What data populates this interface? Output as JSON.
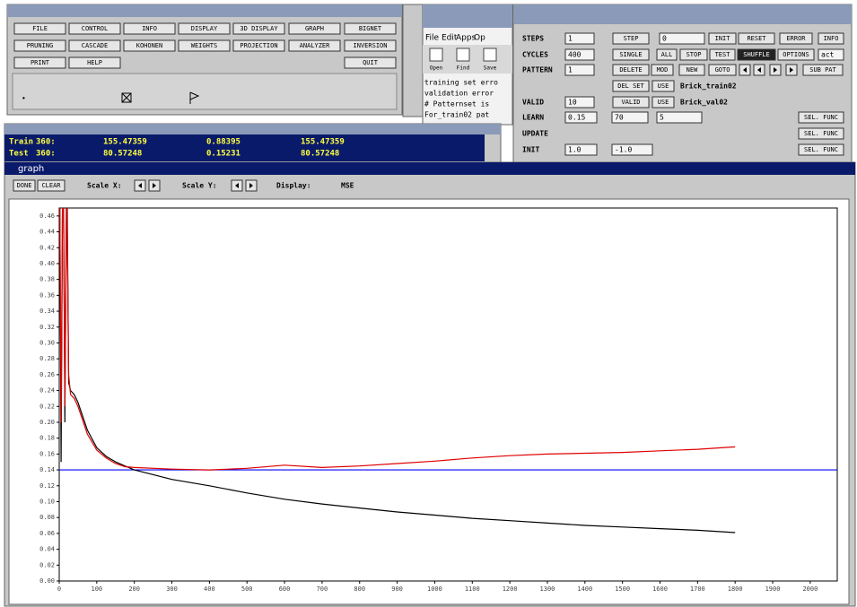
{
  "manager_panel": {
    "buttons": [
      [
        "FILE",
        "CONTROL",
        "INFO",
        "DISPLAY",
        "3D DISPLAY",
        "GRAPH",
        "BIGNET"
      ],
      [
        "PRUNING",
        "CASCADE",
        "KOHONEN",
        "WEIGHTS",
        "PROJECTION",
        "ANALYZER",
        "INVERSION"
      ],
      [
        "PRINT",
        "HELP",
        "QUIT"
      ]
    ]
  },
  "editor": {
    "menu": [
      "File",
      "Edit",
      "Apps",
      "Op"
    ],
    "toolbar": [
      "Open",
      "Find",
      "Save"
    ],
    "lines": [
      "training set erro",
      "validation error",
      "#  Patternset is",
      "For_train02 pat"
    ]
  },
  "control_panel": {
    "labels": [
      "STEPS",
      "CYCLES",
      "PATTERN",
      "VALID",
      "LEARN",
      "UPDATE",
      "INIT"
    ],
    "fields": [
      "1",
      "0",
      "400",
      "1",
      "10",
      "0.15",
      "70",
      "5",
      "1.0",
      "-1.0",
      "act"
    ],
    "buttons": [
      "STEP",
      "INIT",
      "RESET",
      "ERROR",
      "INFO",
      "SINGLE",
      "ALL",
      "STOP",
      "TEST",
      "SHUFFLE",
      "OPTIONS",
      "DELETE",
      "MOD",
      "NEW",
      "GOTO",
      "SUB PAT",
      "DEL SET",
      "USE",
      "VALID",
      "USE",
      "SEL. FUNC",
      "SEL. FUNC",
      "SEL. FUNC"
    ],
    "train_set": "Brick_train02",
    "valid_set": "Brick_val02"
  },
  "error_window": {
    "rows": [
      [
        "Train",
        "360:",
        "155.47359",
        "0.88395",
        "155.47359"
      ],
      [
        "Test",
        "360:",
        "80.57248",
        "0.15231",
        "80.57248"
      ]
    ]
  },
  "graph_window": {
    "title": "graph",
    "buttons": [
      "DONE",
      "CLEAR"
    ],
    "scale_x": "Scale X:",
    "scale_y": "Scale Y:",
    "display_label": "Display:",
    "display_value": "MSE",
    "chart": {
      "type": "line",
      "x": [
        0,
        5,
        10,
        15,
        20,
        25,
        30,
        40,
        50,
        75,
        100,
        125,
        150,
        175,
        200,
        300,
        400,
        500,
        600,
        700,
        800,
        900,
        1000,
        1100,
        1200,
        1300,
        1400,
        1500,
        1600,
        1700,
        1800
      ],
      "series": [
        {
          "color": "#000000",
          "values": [
            0.62,
            0.15,
            0.6,
            0.2,
            0.55,
            0.25,
            0.24,
            0.235,
            0.225,
            0.19,
            0.168,
            0.157,
            0.15,
            0.145,
            0.14,
            0.128,
            0.12,
            0.111,
            0.103,
            0.097,
            0.092,
            0.087,
            0.083,
            0.079,
            0.076,
            0.073,
            0.07,
            0.068,
            0.066,
            0.064,
            0.061
          ]
        },
        {
          "color": "#e00000",
          "values": [
            0.6,
            0.2,
            0.58,
            0.22,
            0.5,
            0.26,
            0.235,
            0.23,
            0.22,
            0.185,
            0.165,
            0.155,
            0.148,
            0.144,
            0.143,
            0.141,
            0.14,
            0.142,
            0.146,
            0.143,
            0.145,
            0.148,
            0.151,
            0.155,
            0.158,
            0.16,
            0.161,
            0.162,
            0.164,
            0.166,
            0.169
          ]
        }
      ],
      "reference_line": {
        "value": 0.14,
        "color": "#0000ff"
      },
      "xlim": [
        0,
        2072
      ],
      "ylim": [
        0,
        0.47
      ],
      "xticks": [
        0,
        100,
        200,
        300,
        400,
        500,
        600,
        700,
        800,
        900,
        1000,
        1100,
        1200,
        1300,
        1400,
        1500,
        1600,
        1700,
        1800,
        1900,
        2000
      ],
      "yticks": [
        {
          "value": 0,
          "label": "0.00"
        },
        {
          "value": 0.02,
          "label": "0.02"
        },
        {
          "value": 0.04,
          "label": "0.04"
        },
        {
          "value": 0.06,
          "label": "0.06"
        },
        {
          "value": 0.08,
          "label": "0.08"
        },
        {
          "value": 0.1,
          "label": "0.10"
        },
        {
          "value": 0.12,
          "label": "0.12"
        },
        {
          "value": 0.14,
          "label": "0.14"
        },
        {
          "value": 0.16,
          "label": "0.16"
        },
        {
          "value": 0.18,
          "label": "0.18"
        },
        {
          "value": 0.2,
          "label": "0.20"
        },
        {
          "value": 0.22,
          "label": "0.22"
        },
        {
          "value": 0.24,
          "label": "0.24"
        },
        {
          "value": 0.26,
          "label": "0.26"
        },
        {
          "value": 0.28,
          "label": "0.28"
        },
        {
          "value": 0.3,
          "label": "0.30"
        },
        {
          "value": 0.32,
          "label": "0.32"
        },
        {
          "value": 0.34,
          "label": "0.34"
        },
        {
          "value": 0.36,
          "label": "0.36"
        },
        {
          "value": 0.38,
          "label": "0.38"
        },
        {
          "value": 0.4,
          "label": "0.40"
        },
        {
          "value": 0.42,
          "label": "0.42"
        },
        {
          "value": 0.44,
          "label": "0.44"
        },
        {
          "value": 0.46,
          "label": "0.46"
        }
      ]
    }
  }
}
